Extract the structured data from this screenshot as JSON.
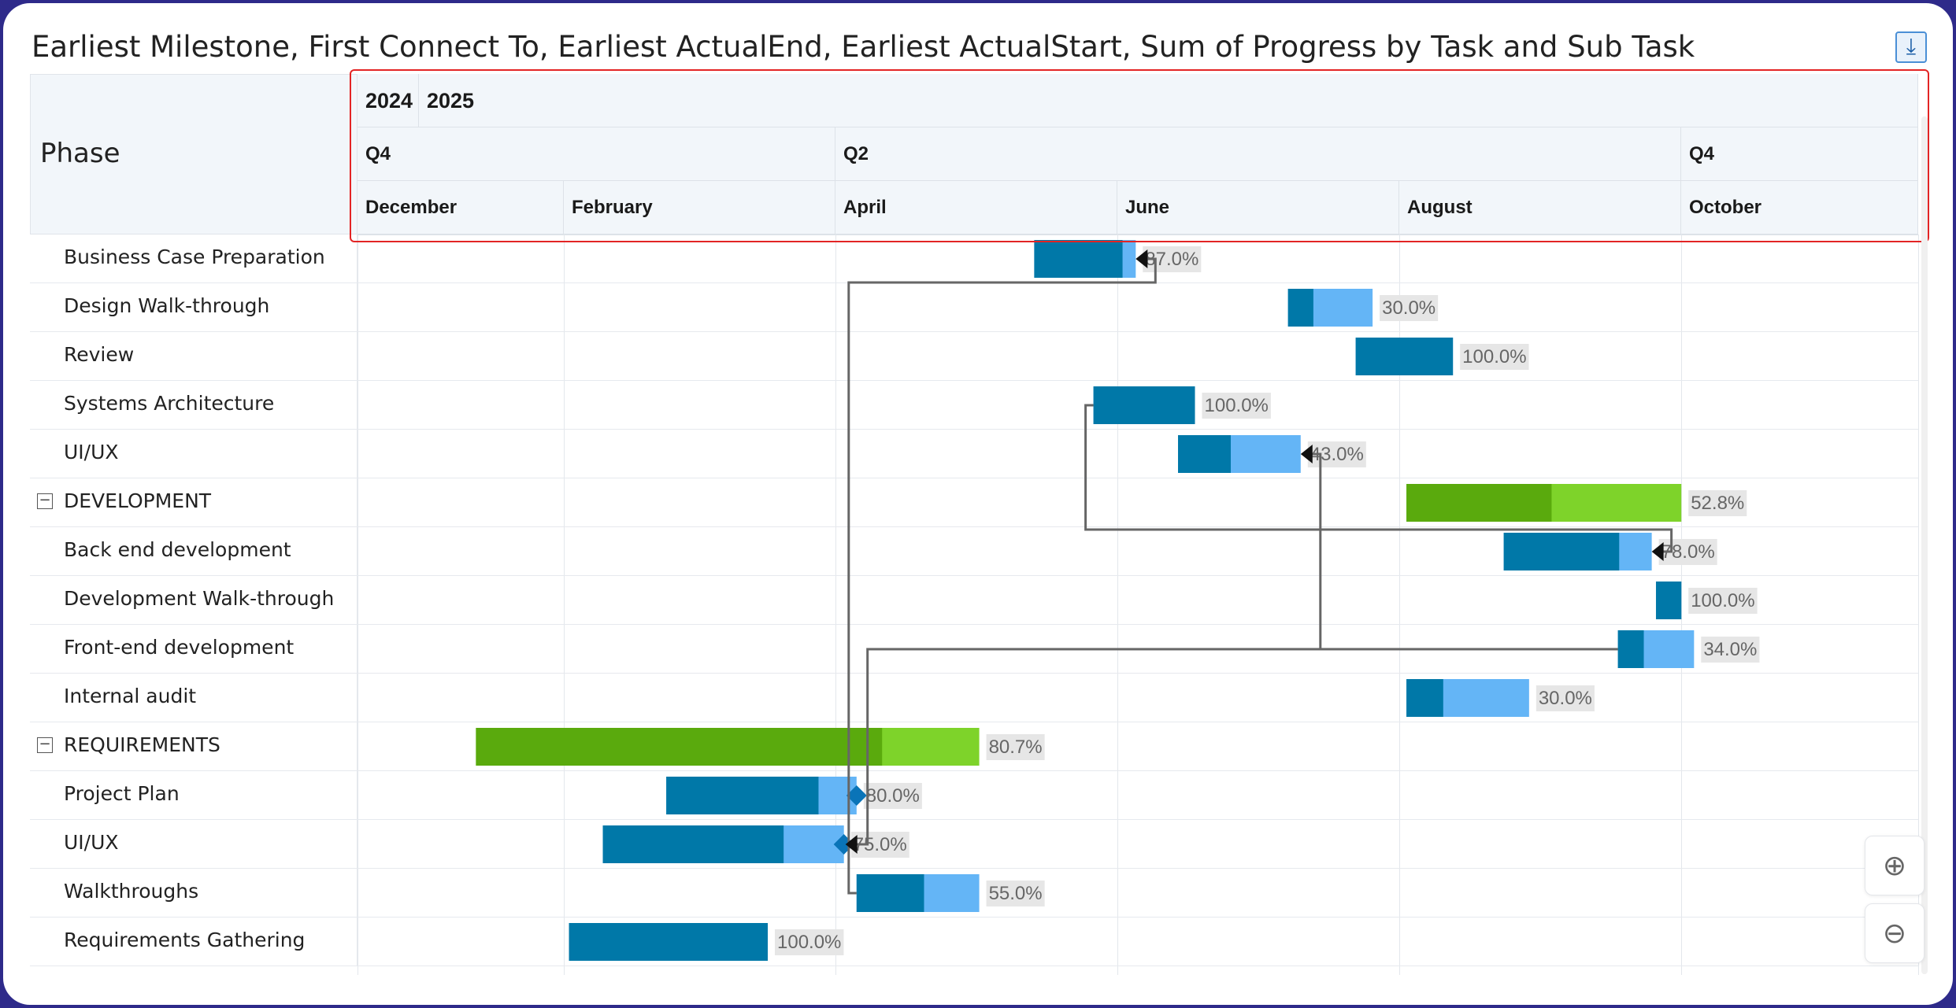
{
  "title": "Earliest Milestone, First Connect To, Earliest ActualEnd, Earliest ActualStart, Sum of Progress by Task and Sub Task",
  "phase_header": "Phase",
  "icons": {
    "export": "export-icon",
    "zoom_in": "zoom-in-icon",
    "zoom_out": "zoom-out-icon",
    "collapse": "collapse-icon"
  },
  "colors": {
    "task_done": "#0078a8",
    "task_remaining": "#64b5f6",
    "phase_done": "#5aaa0d",
    "phase_remaining": "#7ed32a",
    "connector": "#666666",
    "milestone": "#0a74b8",
    "arrow": "#111111",
    "label_bg": "#e6e6e6",
    "label_text": "#666666",
    "highlight": "#e32424"
  },
  "chart_data": {
    "type": "gantt",
    "title": "Earliest Milestone, First Connect To, Earliest ActualEnd, Earliest ActualStart, Sum of Progress by Task and Sub Task",
    "timeline": {
      "start": "2024-11-26",
      "end": "2025-11-30",
      "years": [
        "2024",
        "2025"
      ],
      "quarters": [
        "Q4",
        "Q2",
        "Q4"
      ],
      "months": [
        "December",
        "February",
        "April",
        "June",
        "August",
        "October"
      ]
    },
    "rows": [
      {
        "label": "Business Case Preparation",
        "type": "task",
        "start": "2025-05-05",
        "end": "2025-05-29",
        "progress": 87.0,
        "progress_label": "87.0%"
      },
      {
        "label": "Design Walk-through",
        "type": "task",
        "start": "2025-07-04",
        "end": "2025-07-24",
        "progress": 30.0,
        "progress_label": "30.0%"
      },
      {
        "label": "Review",
        "type": "task",
        "start": "2025-07-20",
        "end": "2025-08-12",
        "progress": 100.0,
        "progress_label": "100.0%"
      },
      {
        "label": "Systems Architecture",
        "type": "task",
        "start": "2025-05-19",
        "end": "2025-06-12",
        "progress": 100.0,
        "progress_label": "100.0%"
      },
      {
        "label": "UI/UX",
        "type": "task",
        "start": "2025-06-08",
        "end": "2025-07-07",
        "progress": 43.0,
        "progress_label": "43.0%"
      },
      {
        "label": "DEVELOPMENT",
        "type": "phase",
        "start": "2025-08-01",
        "end": "2025-10-05",
        "progress": 52.8,
        "progress_label": "52.8%"
      },
      {
        "label": "Back end development",
        "type": "task",
        "start": "2025-08-24",
        "end": "2025-09-28",
        "progress": 78.0,
        "progress_label": "78.0%"
      },
      {
        "label": "Development Walk-through",
        "type": "task",
        "start": "2025-09-29",
        "end": "2025-10-05",
        "progress": 100.0,
        "progress_label": "100.0%"
      },
      {
        "label": "Front-end development",
        "type": "task",
        "start": "2025-09-20",
        "end": "2025-10-08",
        "progress": 34.0,
        "progress_label": "34.0%"
      },
      {
        "label": "Internal audit",
        "type": "task",
        "start": "2025-08-01",
        "end": "2025-08-30",
        "progress": 30.0,
        "progress_label": "30.0%"
      },
      {
        "label": "REQUIREMENTS",
        "type": "phase",
        "start": "2024-12-24",
        "end": "2025-04-22",
        "progress": 80.7,
        "progress_label": "80.7%"
      },
      {
        "label": "Project Plan",
        "type": "task",
        "start": "2025-02-07",
        "end": "2025-03-24",
        "progress": 80.0,
        "progress_label": "80.0%",
        "milestone": true
      },
      {
        "label": "UI/UX",
        "type": "task",
        "start": "2025-01-23",
        "end": "2025-03-21",
        "progress": 75.0,
        "progress_label": "75.0%",
        "milestone": true
      },
      {
        "label": "Walkthroughs",
        "type": "task",
        "start": "2025-03-24",
        "end": "2025-04-22",
        "progress": 55.0,
        "progress_label": "55.0%"
      },
      {
        "label": "Requirements Gathering",
        "type": "task",
        "start": "2025-01-15",
        "end": "2025-03-03",
        "progress": 100.0,
        "progress_label": "100.0%"
      }
    ],
    "dependencies": [
      {
        "from": "Walkthroughs",
        "to": "Business Case Preparation"
      },
      {
        "from": "Systems Architecture",
        "to": "Back end development"
      },
      {
        "from": "Front-end development",
        "to": "UI/UX"
      },
      {
        "from": "Front-end development",
        "to": "UI/UX (REQUIREMENTS)"
      }
    ]
  }
}
